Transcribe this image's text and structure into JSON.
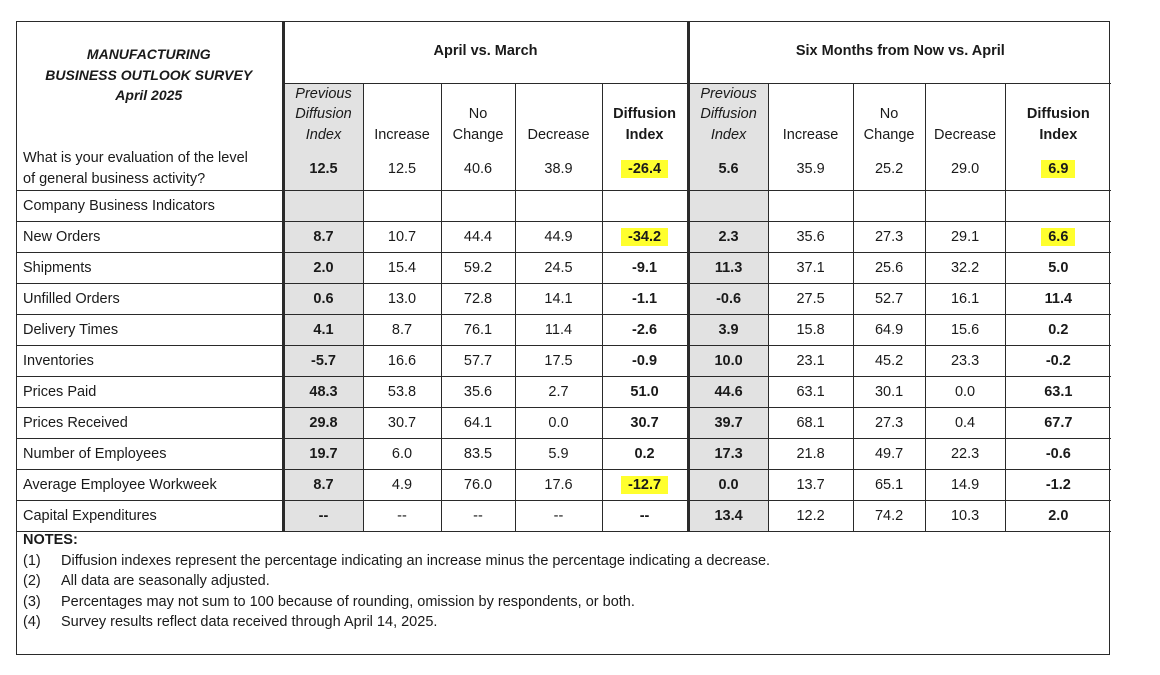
{
  "header": {
    "title_line1": "MANUFACTURING",
    "title_line2": "BUSINESS OUTLOOK SURVEY",
    "title_line3": "April 2025",
    "group_current": "April vs. March",
    "group_future": "Six Months from Now vs. April"
  },
  "columns": {
    "prev_l1": "Previous",
    "prev_l2": "Diffusion",
    "prev_l3": "Index",
    "increase": "Increase",
    "nochange_l1": "No",
    "nochange_l2": "Change",
    "decrease": "Decrease",
    "diff_l1": "Diffusion",
    "diff_l2": "Index"
  },
  "rows": [
    {
      "label_l1": "What is your evaluation of the level",
      "label_l2": "of general business activity?",
      "cur": [
        "12.5",
        "12.5",
        "40.6",
        "38.9",
        "-26.4"
      ],
      "fut": [
        "5.6",
        "35.9",
        "25.2",
        "29.0",
        "6.9"
      ],
      "hl_cur": true,
      "hl_fut": true
    },
    {
      "label": "Company Business Indicators",
      "cur": [
        "",
        "",
        "",
        "",
        ""
      ],
      "fut": [
        "",
        "",
        "",
        "",
        ""
      ]
    },
    {
      "label": "New Orders",
      "cur": [
        "8.7",
        "10.7",
        "44.4",
        "44.9",
        "-34.2"
      ],
      "fut": [
        "2.3",
        "35.6",
        "27.3",
        "29.1",
        "6.6"
      ],
      "hl_cur": true,
      "hl_fut": true
    },
    {
      "label": "Shipments",
      "cur": [
        "2.0",
        "15.4",
        "59.2",
        "24.5",
        "-9.1"
      ],
      "fut": [
        "11.3",
        "37.1",
        "25.6",
        "32.2",
        "5.0"
      ]
    },
    {
      "label": "Unfilled Orders",
      "cur": [
        "0.6",
        "13.0",
        "72.8",
        "14.1",
        "-1.1"
      ],
      "fut": [
        "-0.6",
        "27.5",
        "52.7",
        "16.1",
        "11.4"
      ]
    },
    {
      "label": "Delivery Times",
      "cur": [
        "4.1",
        "8.7",
        "76.1",
        "11.4",
        "-2.6"
      ],
      "fut": [
        "3.9",
        "15.8",
        "64.9",
        "15.6",
        "0.2"
      ]
    },
    {
      "label": "Inventories",
      "cur": [
        "-5.7",
        "16.6",
        "57.7",
        "17.5",
        "-0.9"
      ],
      "fut": [
        "10.0",
        "23.1",
        "45.2",
        "23.3",
        "-0.2"
      ]
    },
    {
      "label": "Prices Paid",
      "cur": [
        "48.3",
        "53.8",
        "35.6",
        "2.7",
        "51.0"
      ],
      "fut": [
        "44.6",
        "63.1",
        "30.1",
        "0.0",
        "63.1"
      ]
    },
    {
      "label": "Prices Received",
      "cur": [
        "29.8",
        "30.7",
        "64.1",
        "0.0",
        "30.7"
      ],
      "fut": [
        "39.7",
        "68.1",
        "27.3",
        "0.4",
        "67.7"
      ]
    },
    {
      "label": "Number of Employees",
      "cur": [
        "19.7",
        "6.0",
        "83.5",
        "5.9",
        "0.2"
      ],
      "fut": [
        "17.3",
        "21.8",
        "49.7",
        "22.3",
        "-0.6"
      ]
    },
    {
      "label": "Average Employee Workweek",
      "cur": [
        "8.7",
        "4.9",
        "76.0",
        "17.6",
        "-12.7"
      ],
      "fut": [
        "0.0",
        "13.7",
        "65.1",
        "14.9",
        "-1.2"
      ],
      "hl_cur": true
    },
    {
      "label": "Capital Expenditures",
      "cur": [
        "--",
        "--",
        "--",
        "--",
        "--"
      ],
      "fut": [
        "13.4",
        "12.2",
        "74.2",
        "10.3",
        "2.0"
      ]
    }
  ],
  "notes": {
    "title": "NOTES:",
    "items": [
      {
        "num": "(1)",
        "text": "Diffusion indexes represent the percentage indicating an increase minus the percentage indicating a decrease."
      },
      {
        "num": "(2)",
        "text": "All data are seasonally adjusted."
      },
      {
        "num": "(3)",
        "text": "Percentages may not sum to 100 because of rounding, omission by respondents, or both."
      },
      {
        "num": "(4)",
        "text": "Survey results reflect data received through April 14, 2025."
      }
    ]
  },
  "colors": {
    "highlight": "#ffff2e",
    "shade": "#e2e2e2",
    "rule": "#2a2a2a"
  }
}
